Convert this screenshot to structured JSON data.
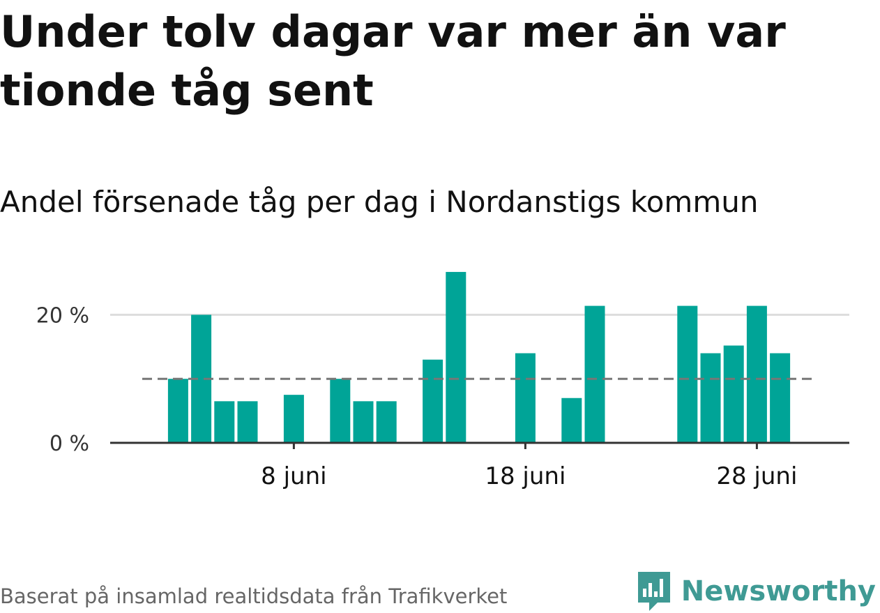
{
  "title": "Under tolv dagar var mer än var tionde tåg sent",
  "subtitle": "Andel försenade tåg per dag i Nordanstigs kommun",
  "footer": "Baserat på insamlad realtidsdata från Trafikverket",
  "brand": {
    "name": "Newsworthy",
    "icon": "newsworthy-logo-icon",
    "color": "#3f9a94"
  },
  "colors": {
    "bar": "#00a497",
    "reference": "#777777",
    "grid": "#dddddd",
    "axis": "#333333"
  },
  "chart_data": {
    "type": "bar",
    "x_start_day": 1,
    "x_end_day": 30,
    "values": [
      {
        "day": 3,
        "value": 10
      },
      {
        "day": 4,
        "value": 20
      },
      {
        "day": 5,
        "value": 6.5
      },
      {
        "day": 6,
        "value": 6.5
      },
      {
        "day": 8,
        "value": 7.5
      },
      {
        "day": 10,
        "value": 10
      },
      {
        "day": 11,
        "value": 6.5
      },
      {
        "day": 12,
        "value": 6.5
      },
      {
        "day": 14,
        "value": 13
      },
      {
        "day": 15,
        "value": 26.7
      },
      {
        "day": 18,
        "value": 14
      },
      {
        "day": 20,
        "value": 7
      },
      {
        "day": 21,
        "value": 21.4
      },
      {
        "day": 25,
        "value": 21.4
      },
      {
        "day": 26,
        "value": 14
      },
      {
        "day": 27,
        "value": 15.2
      },
      {
        "day": 28,
        "value": 21.4
      },
      {
        "day": 29,
        "value": 14
      }
    ],
    "reference_line": 10,
    "ylim": [
      0,
      28
    ],
    "y_ticks": [
      {
        "value": 0,
        "label": "0 %"
      },
      {
        "value": 20,
        "label": "20 %"
      }
    ],
    "x_ticks": [
      {
        "day": 8,
        "label": "8 juni"
      },
      {
        "day": 18,
        "label": "18 juni"
      },
      {
        "day": 28,
        "label": "28 juni"
      }
    ],
    "xlabel": "",
    "ylabel": "",
    "grid": true
  }
}
